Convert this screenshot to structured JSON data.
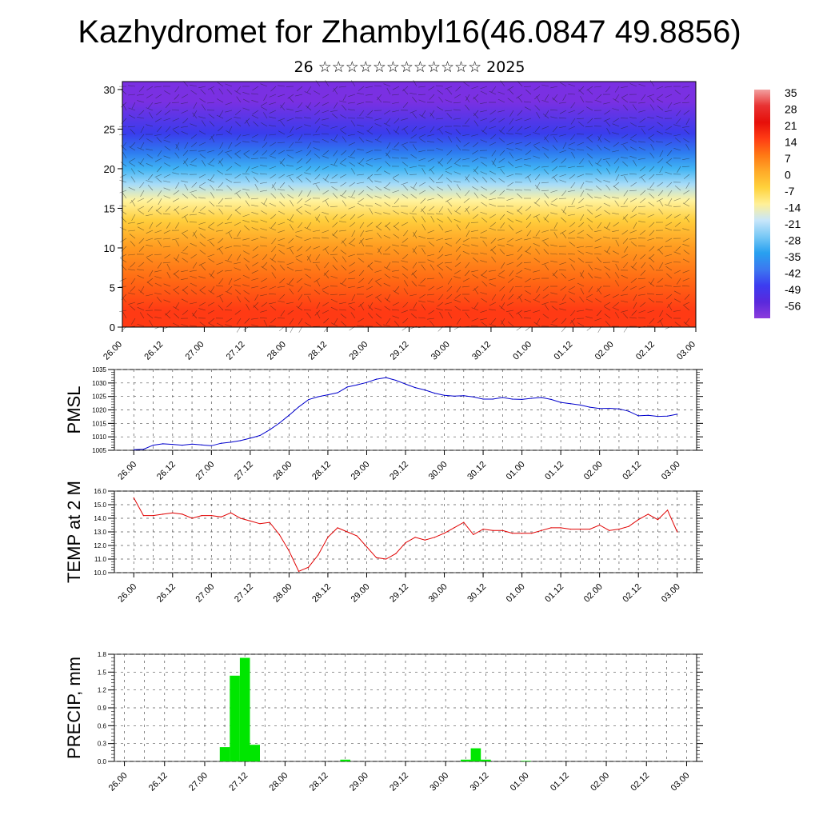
{
  "header": {
    "title": "Kazhydromet for Zhambyl16(46.0847 49.8856)",
    "subtitle": "26 ☆☆☆☆☆☆☆☆☆☆☆☆ 2025"
  },
  "time_ticks": [
    "26.00",
    "26.12",
    "27.00",
    "27.12",
    "28.00",
    "28.12",
    "29.00",
    "29.12",
    "30.00",
    "30.12",
    "01.00",
    "01.12",
    "02.00",
    "02.12",
    "03.00"
  ],
  "chart_data": [
    {
      "id": "crosssection",
      "type": "heatmap",
      "title": "Kazhydromet for Zhambyl16(46.0847 49.8856)",
      "subtitle": "26 ☆☆☆☆☆☆☆☆☆☆☆☆ 2025",
      "ylabel": "",
      "ylim": [
        0,
        31
      ],
      "yticks": [
        0,
        5,
        10,
        15,
        20,
        25,
        30
      ],
      "xticks": [
        "26.00",
        "26.12",
        "27.00",
        "27.12",
        "28.00",
        "28.12",
        "29.00",
        "29.12",
        "30.00",
        "30.12",
        "01.00",
        "01.12",
        "02.00",
        "02.12",
        "03.00"
      ],
      "colorbar": {
        "labels": [
          "35",
          "28",
          "21",
          "14",
          "7",
          "0",
          "-7",
          "-14",
          "-21",
          "-28",
          "-35",
          "-42",
          "-49",
          "-56"
        ],
        "colors": [
          "#f2a0a0",
          "#e83232",
          "#e60f0a",
          "#ff3c14",
          "#ff7814",
          "#ffaa28",
          "#ffd23c",
          "#fff096",
          "#c8e6fa",
          "#78c8f5",
          "#28a0f0",
          "#3c78f0",
          "#3c3cf0",
          "#5a28dc",
          "#8c3cdc"
        ]
      },
      "zones": [
        {
          "from": 0,
          "to": 4,
          "color": "#ff3a14"
        },
        {
          "from": 4,
          "to": 8,
          "color": "#ff6a14"
        },
        {
          "from": 8,
          "to": 12,
          "color": "#ff9a20"
        },
        {
          "from": 12,
          "to": 15,
          "color": "#ffce3c"
        },
        {
          "from": 15,
          "to": 17,
          "color": "#fff3a0"
        },
        {
          "from": 17,
          "to": 19,
          "color": "#a8dcf8"
        },
        {
          "from": 19,
          "to": 21,
          "color": "#40b4f4"
        },
        {
          "from": 21,
          "to": 23,
          "color": "#2e7cf0"
        },
        {
          "from": 23,
          "to": 26,
          "color": "#3a3cec"
        },
        {
          "from": 26,
          "to": 31,
          "color": "#7a30e2"
        }
      ]
    },
    {
      "id": "pmsl",
      "type": "line",
      "ylabel": "PMSL",
      "ylim": [
        1005,
        1035
      ],
      "yticks": [
        1005,
        1010,
        1015,
        1020,
        1025,
        1030,
        1035
      ],
      "xlim": [
        -0.25,
        7.25
      ],
      "color": "#0000cc",
      "x": [
        0,
        0.125,
        0.25,
        0.375,
        0.5,
        0.625,
        0.75,
        0.875,
        1,
        1.125,
        1.25,
        1.375,
        1.5,
        1.625,
        1.75,
        1.875,
        2,
        2.125,
        2.25,
        2.375,
        2.5,
        2.625,
        2.75,
        2.875,
        3,
        3.125,
        3.25,
        3.375,
        3.5,
        3.625,
        3.75,
        3.875,
        4,
        4.125,
        4.25,
        4.375,
        4.5,
        4.625,
        4.75,
        4.875,
        5,
        5.125,
        5.25,
        5.375,
        5.5,
        5.625,
        5.75,
        5.875,
        6,
        6.125,
        6.25,
        6.375,
        6.5,
        6.625,
        6.75,
        6.875,
        7
      ],
      "values": [
        1005.2,
        1005.4,
        1006.9,
        1007.4,
        1007.2,
        1006.9,
        1007.3,
        1007.0,
        1006.7,
        1007.6,
        1008.0,
        1008.6,
        1009.5,
        1010.5,
        1012.6,
        1015.1,
        1018.0,
        1021.1,
        1023.8,
        1024.9,
        1025.6,
        1026.4,
        1028.5,
        1029.3,
        1030.2,
        1031.4,
        1032.0,
        1031.0,
        1029.6,
        1028.3,
        1027.4,
        1026.2,
        1025.4,
        1025.1,
        1025.3,
        1024.8,
        1024.0,
        1024.0,
        1024.6,
        1024.0,
        1023.9,
        1024.3,
        1024.6,
        1023.9,
        1022.8,
        1022.3,
        1021.8,
        1021.0,
        1020.5,
        1020.6,
        1020.4,
        1019.5,
        1017.8,
        1018.0,
        1017.6,
        1017.7,
        1018.4
      ]
    },
    {
      "id": "temp2m",
      "type": "line",
      "ylabel": "TEMP at 2 M",
      "ylim": [
        10.0,
        16.0
      ],
      "yticks": [
        "10.0",
        "11.0",
        "12.0",
        "13.0",
        "14.0",
        "15.0",
        "16.0"
      ],
      "xlim": [
        -0.25,
        7.25
      ],
      "color": "#e00000",
      "x": [
        0,
        0.125,
        0.25,
        0.375,
        0.5,
        0.625,
        0.75,
        0.875,
        1,
        1.125,
        1.25,
        1.375,
        1.5,
        1.625,
        1.75,
        1.875,
        2,
        2.125,
        2.25,
        2.375,
        2.5,
        2.625,
        2.75,
        2.875,
        3,
        3.125,
        3.25,
        3.375,
        3.5,
        3.625,
        3.75,
        3.875,
        4,
        4.125,
        4.25,
        4.375,
        4.5,
        4.625,
        4.75,
        4.875,
        5,
        5.125,
        5.25,
        5.375,
        5.5,
        5.625,
        5.75,
        5.875,
        6,
        6.125,
        6.25,
        6.375,
        6.5,
        6.625,
        6.75,
        6.875,
        7
      ],
      "values": [
        15.5,
        14.2,
        14.2,
        14.3,
        14.4,
        14.3,
        14.0,
        14.2,
        14.2,
        14.1,
        14.4,
        14.0,
        13.8,
        13.6,
        13.7,
        12.8,
        11.6,
        10.1,
        10.4,
        11.3,
        12.6,
        13.3,
        13.0,
        12.7,
        11.9,
        11.1,
        11.0,
        11.4,
        12.2,
        12.6,
        12.4,
        12.6,
        12.9,
        13.3,
        13.7,
        12.8,
        13.2,
        13.1,
        13.1,
        12.9,
        12.9,
        12.9,
        13.1,
        13.3,
        13.3,
        13.2,
        13.2,
        13.2,
        13.5,
        13.1,
        13.2,
        13.4,
        13.9,
        14.3,
        13.9,
        14.6,
        13.0
      ]
    },
    {
      "id": "precip",
      "type": "bar",
      "ylabel": "PRECIP, mm",
      "ylim": [
        0.0,
        1.8
      ],
      "yticks": [
        "0.0",
        "0.3",
        "0.6",
        "0.9",
        "1.2",
        "1.5",
        "1.8"
      ],
      "xlim": [
        -0.125,
        7.125
      ],
      "color": "#00e600",
      "bar_width": 0.125,
      "x": [
        1.25,
        1.375,
        1.5,
        1.625,
        2.75,
        4.25,
        4.375,
        4.5,
        5.0
      ],
      "values": [
        0.24,
        1.44,
        1.74,
        0.28,
        0.03,
        0.03,
        0.22,
        0.03,
        0.01
      ]
    }
  ]
}
